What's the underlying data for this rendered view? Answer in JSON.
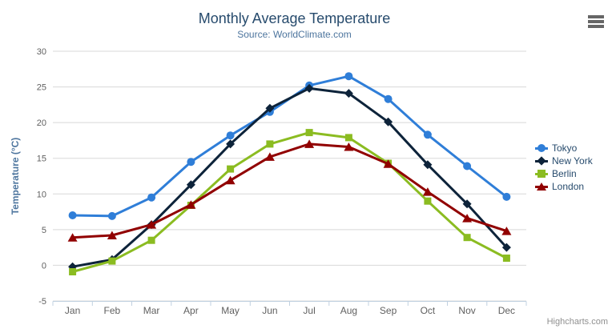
{
  "credit": "Highcharts.com",
  "colors": {
    "title": "#274b6d",
    "subtitle": "#4d759e",
    "axis_label": "#606060",
    "axis_title": "#4d759e",
    "grid": "#d8d8d8",
    "axis_line": "#c0d0e0",
    "legend_text": "#274b6d",
    "credit": "#909090",
    "menu_icon": "#666666"
  },
  "chart_data": {
    "type": "line",
    "title": "Monthly Average Temperature",
    "subtitle": "Source: WorldClimate.com",
    "xlabel": "",
    "ylabel": "Temperature (°C)",
    "categories": [
      "Jan",
      "Feb",
      "Mar",
      "Apr",
      "May",
      "Jun",
      "Jul",
      "Aug",
      "Sep",
      "Oct",
      "Nov",
      "Dec"
    ],
    "yticks": [
      -5,
      0,
      5,
      10,
      15,
      20,
      25,
      30
    ],
    "ylim": [
      -5,
      30
    ],
    "grid": true,
    "legend_position": "right",
    "series": [
      {
        "name": "Tokyo",
        "color": "#2f7ed8",
        "marker": "circle",
        "values": [
          7.0,
          6.9,
          9.5,
          14.5,
          18.2,
          21.5,
          25.2,
          26.5,
          23.3,
          18.3,
          13.9,
          9.6
        ]
      },
      {
        "name": "New York",
        "color": "#0d233a",
        "marker": "diamond",
        "values": [
          -0.2,
          0.8,
          5.7,
          11.3,
          17.0,
          22.0,
          24.8,
          24.1,
          20.1,
          14.1,
          8.6,
          2.5
        ]
      },
      {
        "name": "Berlin",
        "color": "#8bbc21",
        "marker": "square",
        "values": [
          -0.9,
          0.6,
          3.5,
          8.4,
          13.5,
          17.0,
          18.6,
          17.9,
          14.3,
          9.0,
          3.9,
          1.0
        ]
      },
      {
        "name": "London",
        "color": "#910000",
        "marker": "triangle",
        "values": [
          3.9,
          4.2,
          5.7,
          8.5,
          11.9,
          15.2,
          17.0,
          16.6,
          14.2,
          10.3,
          6.6,
          4.8
        ]
      }
    ]
  }
}
